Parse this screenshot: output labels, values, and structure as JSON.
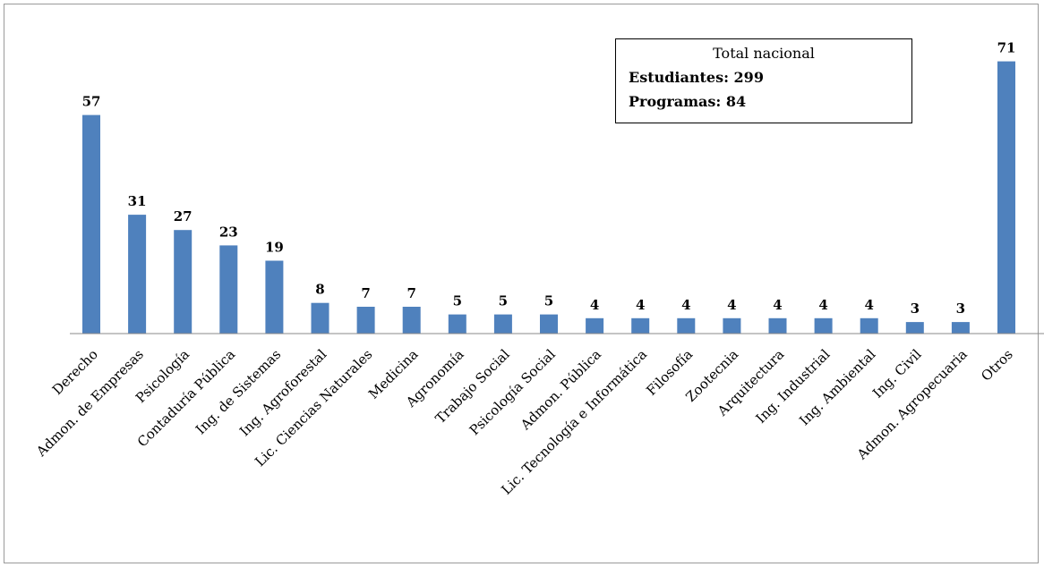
{
  "chart_data": {
    "type": "bar",
    "title": "",
    "xlabel": "",
    "ylabel": "",
    "bar_color": "#4F81BD",
    "grid": false,
    "ylim": [
      0,
      73
    ],
    "categories": [
      "Derecho",
      "Admon. de Empresas",
      "Psicología",
      "Contaduría Pública",
      "Ing. de Sistemas",
      "Ing. Agroforestal",
      "Lic. Ciencias Naturales",
      "Medicina",
      "Agronomía",
      "Trabajo Social",
      "Psicología Social",
      "Admon. Pública",
      "Lic. Tecnología e Informática",
      "Filosofía",
      "Zootecnia",
      "Arquitectura",
      "Ing. Industrial",
      "Ing. Ambiental",
      "Ing. Civil",
      "Admon. Agropecuaria",
      "Otros"
    ],
    "values": [
      57,
      31,
      27,
      23,
      19,
      8,
      7,
      7,
      5,
      5,
      5,
      4,
      4,
      4,
      4,
      4,
      4,
      4,
      3,
      3,
      71
    ],
    "value_labels": [
      "57",
      "31",
      "27",
      "23",
      "19",
      "8",
      "7",
      "7",
      "5",
      "5",
      "5",
      "4",
      "4",
      "4",
      "4",
      "4",
      "4",
      "4",
      "3",
      "3",
      "71"
    ]
  },
  "info_box": {
    "title": "Total nacional",
    "students_label": "Estudiantes: 299",
    "programs_label": "Programas: 84"
  }
}
